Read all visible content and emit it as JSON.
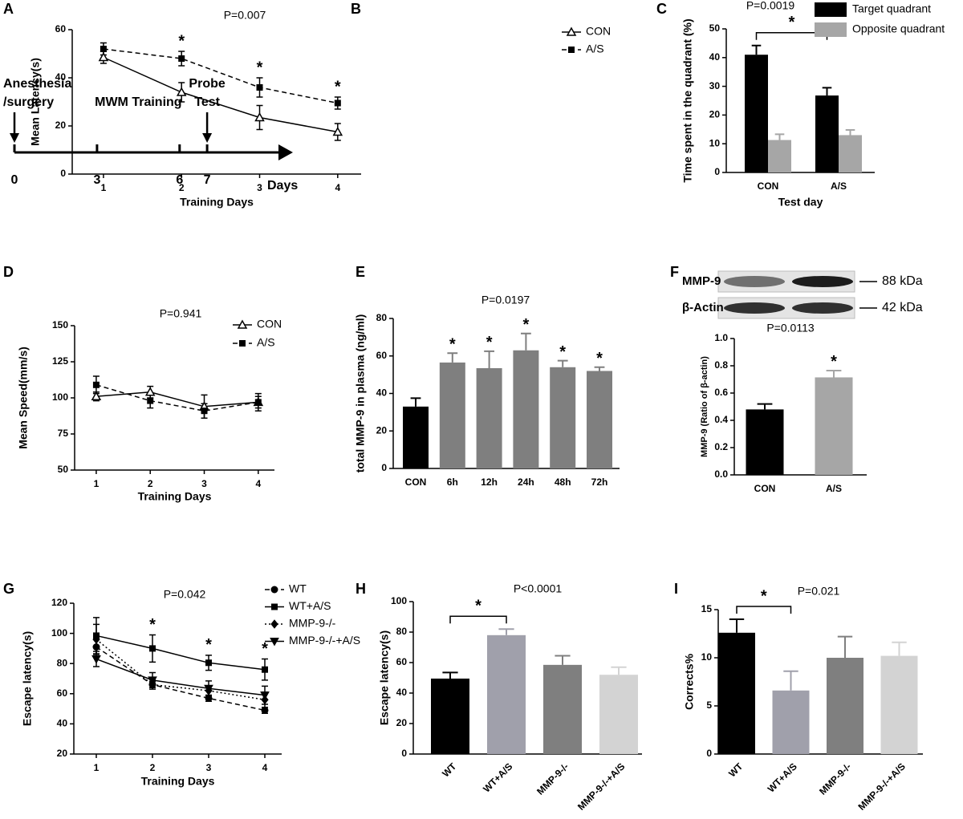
{
  "chart_data": [
    {
      "panel": "A",
      "type": "timeline",
      "xlabel": "Days",
      "xlim": [
        0,
        10
      ],
      "xticks": [
        0,
        3,
        6,
        7
      ],
      "events": [
        {
          "day": 0,
          "lines": [
            "Anesthesia",
            "/surgery"
          ],
          "arrow": true
        },
        {
          "days": [
            3,
            6
          ],
          "lines": [
            "MWM Training"
          ]
        },
        {
          "day": 7,
          "lines": [
            "Probe",
            "Test"
          ],
          "arrow": true
        }
      ]
    },
    {
      "panel": "B",
      "type": "line",
      "title": "P=0.007",
      "xlabel": "Training Days",
      "ylabel": "Mean Latency(s)",
      "x": [
        1,
        2,
        3,
        4
      ],
      "xlim": [
        0.6,
        4.3
      ],
      "xticks": [
        1,
        2,
        3,
        4
      ],
      "ylim": [
        0,
        60
      ],
      "yticks": [
        0,
        20,
        40,
        60
      ],
      "series": [
        {
          "name": "CON",
          "color": "#000000",
          "marker": "triangle-open",
          "dash": "solid",
          "values": [
            48.5,
            34,
            23.5,
            17.5
          ],
          "errors": [
            2.5,
            4,
            5,
            3.5
          ]
        },
        {
          "name": "A/S",
          "color": "#000000",
          "marker": "square",
          "dash": "dashed",
          "values": [
            52,
            48,
            36,
            29.5
          ],
          "errors": [
            2.5,
            3,
            4,
            2.5
          ]
        }
      ],
      "significance": [
        null,
        "*",
        "*",
        "*"
      ]
    },
    {
      "panel": "C",
      "type": "bar",
      "title": "P=0.0019",
      "xlabel": "Test day",
      "ylabel": "Time spent in the quadrant (%)",
      "categories": [
        "CON",
        "A/S"
      ],
      "ylim": [
        0,
        50
      ],
      "yticks": [
        0,
        10,
        20,
        30,
        40,
        50
      ],
      "series": [
        {
          "name": "Target quadrant",
          "color": "#000000",
          "values": [
            41,
            26.8
          ],
          "errors": [
            3.2,
            2.7
          ]
        },
        {
          "name": "Opposite quadrant",
          "color": "#a6a6a6",
          "values": [
            11.3,
            13
          ],
          "errors": [
            2,
            1.8
          ]
        }
      ],
      "bracket": {
        "series": 0,
        "between": [
          0,
          1
        ],
        "label": "*"
      }
    },
    {
      "panel": "D",
      "type": "line",
      "title": "P=0.941",
      "xlabel": "Training Days",
      "ylabel": "Mean Speed(mm/s)",
      "x": [
        1,
        2,
        3,
        4
      ],
      "xlim": [
        0.6,
        4.3
      ],
      "xticks": [
        1,
        2,
        3,
        4
      ],
      "ylim": [
        50,
        150
      ],
      "yticks": [
        50,
        75,
        100,
        125,
        150
      ],
      "series": [
        {
          "name": "CON",
          "color": "#000000",
          "marker": "triangle-open",
          "dash": "solid",
          "values": [
            101,
            104,
            94,
            97
          ],
          "errors": [
            3,
            4,
            8,
            4
          ]
        },
        {
          "name": "A/S",
          "color": "#000000",
          "marker": "square",
          "dash": "dashed",
          "values": [
            109,
            98,
            91,
            97
          ],
          "errors": [
            6,
            5,
            5,
            6
          ]
        }
      ]
    },
    {
      "panel": "E",
      "type": "bar",
      "title": "P=0.0197",
      "ylabel": "total MMP-9 in plasma (ng/ml)",
      "categories": [
        "CON",
        "6h",
        "12h",
        "24h",
        "48h",
        "72h"
      ],
      "values": [
        33,
        56.5,
        53.5,
        63,
        54,
        52
      ],
      "errors": [
        4.5,
        5,
        9,
        9,
        3.5,
        2
      ],
      "colors": [
        "#000000",
        "#7f7f7f",
        "#7f7f7f",
        "#7f7f7f",
        "#7f7f7f",
        "#7f7f7f"
      ],
      "ylim": [
        0,
        80
      ],
      "yticks": [
        0,
        20,
        40,
        60,
        80
      ],
      "significance": [
        null,
        "*",
        "*",
        "*",
        "*",
        "*"
      ]
    },
    {
      "panel": "F",
      "type": "bar",
      "title": "P=0.0113",
      "ylabel": "MMP-9 (Ratio of β-actin)",
      "categories": [
        "CON",
        "A/S"
      ],
      "values": [
        0.48,
        0.715
      ],
      "errors": [
        0.04,
        0.05
      ],
      "colors": [
        "#000000",
        "#a6a6a6"
      ],
      "ylim": [
        0,
        1
      ],
      "yticks": [
        {
          "value": 0,
          "label": "0.0"
        },
        0.2,
        0.4,
        0.6,
        0.8,
        {
          "value": 1,
          "label": "1.0"
        }
      ],
      "significance": [
        null,
        "*"
      ],
      "blot": {
        "bands": [
          {
            "label": "MMP-9",
            "size": "88 kDa"
          },
          {
            "label": "β-Actin",
            "size": "42 kDa"
          }
        ]
      }
    },
    {
      "panel": "G",
      "type": "line",
      "title": "P=0.042",
      "xlabel": "Training Days",
      "ylabel": "Escape latency(s)",
      "x": [
        1,
        2,
        3,
        4
      ],
      "xlim": [
        0.6,
        4.3
      ],
      "xticks": [
        1,
        2,
        3,
        4
      ],
      "ylim": [
        20,
        120
      ],
      "yticks": [
        20,
        40,
        60,
        80,
        100,
        120
      ],
      "series": [
        {
          "name": "WT",
          "color": "#000000",
          "marker": "circle",
          "dash": "dashed",
          "values": [
            91,
            66,
            57,
            49
          ],
          "errors": [
            5,
            2,
            2,
            2
          ]
        },
        {
          "name": "WT+A/S",
          "color": "#000000",
          "marker": "square",
          "dash": "solid",
          "values": [
            98.5,
            90,
            80.5,
            76
          ],
          "errors": [
            12,
            9,
            5,
            7
          ]
        },
        {
          "name": "MMP-9-/-",
          "color": "#000000",
          "marker": "diamond",
          "dash": "dotted",
          "values": [
            96,
            66,
            62,
            56
          ],
          "errors": [
            10,
            3,
            3,
            5
          ]
        },
        {
          "name": "MMP-9-/-+A/S",
          "color": "#000000",
          "marker": "triangle-down",
          "dash": "solid",
          "values": [
            83,
            69,
            63.5,
            59
          ],
          "errors": [
            5,
            5,
            5,
            6
          ]
        }
      ],
      "significance": [
        null,
        "*",
        "*",
        "*"
      ]
    },
    {
      "panel": "H",
      "type": "bar",
      "title": "P<0.0001",
      "ylabel": "Escape latency(s)",
      "categories": [
        "WT",
        "WT+A/S",
        "MMP-9-/-",
        "MMP-9-/-+A/S"
      ],
      "values": [
        49.5,
        78,
        58.5,
        52
      ],
      "errors": [
        4,
        4,
        6,
        5
      ],
      "colors": [
        "#000000",
        "#a0a0ab",
        "#7f7f7f",
        "#d3d3d3"
      ],
      "ylim": [
        0,
        100
      ],
      "yticks": [
        0,
        20,
        40,
        60,
        80,
        100
      ],
      "xtick_rotation": 45,
      "bracket": {
        "between": [
          0,
          1
        ],
        "label": "*"
      }
    },
    {
      "panel": "I",
      "type": "bar",
      "title": "P=0.021",
      "ylabel": "Corrects%",
      "categories": [
        "WT",
        "WT+A/S",
        "MMP-9-/-",
        "MMP-9-/-+A/S"
      ],
      "values": [
        12.6,
        6.6,
        10,
        10.2
      ],
      "errors": [
        1.4,
        2,
        2.2,
        1.4
      ],
      "colors": [
        "#000000",
        "#a0a0ab",
        "#7f7f7f",
        "#d3d3d3"
      ],
      "ylim": [
        0,
        15
      ],
      "yticks": [
        0,
        5,
        10,
        15
      ],
      "xtick_rotation": 45,
      "bracket": {
        "between": [
          0,
          1
        ],
        "label": "*"
      }
    }
  ]
}
